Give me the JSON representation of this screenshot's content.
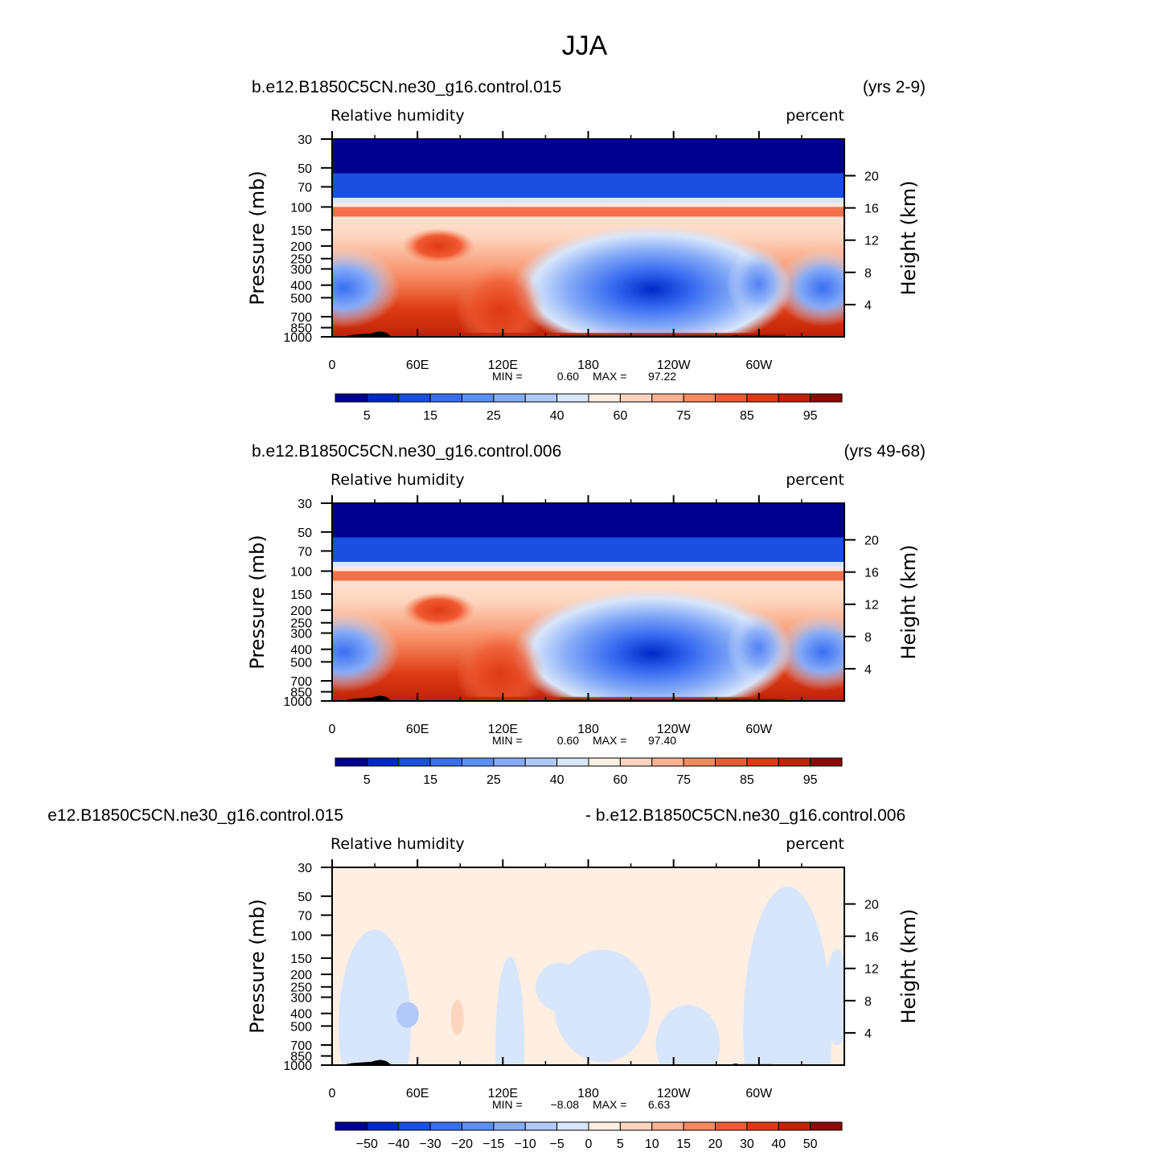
{
  "figure_title": "JJA",
  "colors": {
    "full_scale": [
      "#00008f",
      "#0028c8",
      "#1a4fe0",
      "#3a6ef2",
      "#5c8ff6",
      "#86abf7",
      "#b1c8f9",
      "#d8e6fb",
      "#ffeee2",
      "#fdd4bd",
      "#fbb194",
      "#f7895f",
      "#f05a33",
      "#de3b15",
      "#bf2308",
      "#8c0a0a"
    ],
    "diff_scale": [
      "#00008f",
      "#0028c8",
      "#1a4fe0",
      "#3a6ef2",
      "#5c8ff6",
      "#86abf7",
      "#b1c8f9",
      "#d8e6fb",
      "#ffeee2",
      "#fdd4bd",
      "#fbb194",
      "#f7895f",
      "#f05a33",
      "#de3b15",
      "#bf2308",
      "#8c0a0a"
    ],
    "topography": "#000000"
  },
  "chart_data": [
    {
      "type": "heatmap",
      "case": "b.e12.B1850C5CN.ne30_g16.control.015",
      "years": "(yrs 2-9)",
      "variable": "Relative  humidity",
      "units": "percent",
      "ylabel": "Pressure  (mb)",
      "ylabel_right": "Height  (km)",
      "x_ticks": [
        "0",
        "60E",
        "120E",
        "180",
        "120W",
        "60W"
      ],
      "y_ticks": [
        "30",
        "50",
        "70",
        "100",
        "150",
        "200",
        "250",
        "300",
        "400",
        "500",
        "700",
        "850",
        "1000"
      ],
      "y_ticks_right": [
        "20",
        "16",
        "12",
        "8",
        "4"
      ],
      "xlim": [
        0,
        360
      ],
      "ylim": [
        1000,
        30
      ],
      "min_label": "MIN =",
      "min_value": "0.60",
      "max_label": "MAX =",
      "max_value": "97.22",
      "colorbar_labels": [
        "5",
        "15",
        "25",
        "40",
        "60",
        "75",
        "85",
        "95"
      ],
      "colorbar_levels": [
        5,
        10,
        15,
        20,
        25,
        30,
        40,
        50,
        60,
        70,
        75,
        80,
        85,
        90,
        95
      ]
    },
    {
      "type": "heatmap",
      "case": "b.e12.B1850C5CN.ne30_g16.control.006",
      "years": "(yrs 49-68)",
      "variable": "Relative  humidity",
      "units": "percent",
      "ylabel": "Pressure  (mb)",
      "ylabel_right": "Height  (km)",
      "x_ticks": [
        "0",
        "60E",
        "120E",
        "180",
        "120W",
        "60W"
      ],
      "y_ticks": [
        "30",
        "50",
        "70",
        "100",
        "150",
        "200",
        "250",
        "300",
        "400",
        "500",
        "700",
        "850",
        "1000"
      ],
      "y_ticks_right": [
        "20",
        "16",
        "12",
        "8",
        "4"
      ],
      "xlim": [
        0,
        360
      ],
      "ylim": [
        1000,
        30
      ],
      "min_label": "MIN =",
      "min_value": "0.60",
      "max_label": "MAX =",
      "max_value": "97.40",
      "colorbar_labels": [
        "5",
        "15",
        "25",
        "40",
        "60",
        "75",
        "85",
        "95"
      ],
      "colorbar_levels": [
        5,
        10,
        15,
        20,
        25,
        30,
        40,
        50,
        60,
        70,
        75,
        80,
        85,
        90,
        95
      ]
    },
    {
      "type": "heatmap",
      "title_left": "e12.B1850C5CN.ne30_g16.control.015",
      "title_right": "- b.e12.B1850C5CN.ne30_g16.control.006",
      "variable": "Relative  humidity",
      "units": "percent",
      "ylabel": "Pressure  (mb)",
      "ylabel_right": "Height  (km)",
      "x_ticks": [
        "0",
        "60E",
        "120E",
        "180",
        "120W",
        "60W"
      ],
      "y_ticks": [
        "30",
        "50",
        "70",
        "100",
        "150",
        "200",
        "250",
        "300",
        "400",
        "500",
        "700",
        "850",
        "1000"
      ],
      "y_ticks_right": [
        "20",
        "16",
        "12",
        "8",
        "4"
      ],
      "xlim": [
        0,
        360
      ],
      "ylim": [
        1000,
        30
      ],
      "min_label": "MIN =",
      "min_value": "−8.08",
      "max_label": "MAX =",
      "max_value": "6.63",
      "colorbar_labels": [
        "−50",
        "−40",
        "−30",
        "−20",
        "−15",
        "−10",
        "−5",
        "0",
        "5",
        "10",
        "15",
        "20",
        "30",
        "40",
        "50"
      ],
      "colorbar_levels": [
        -50,
        -40,
        -30,
        -20,
        -15,
        -10,
        -5,
        0,
        5,
        10,
        15,
        20,
        30,
        40,
        50
      ]
    }
  ]
}
